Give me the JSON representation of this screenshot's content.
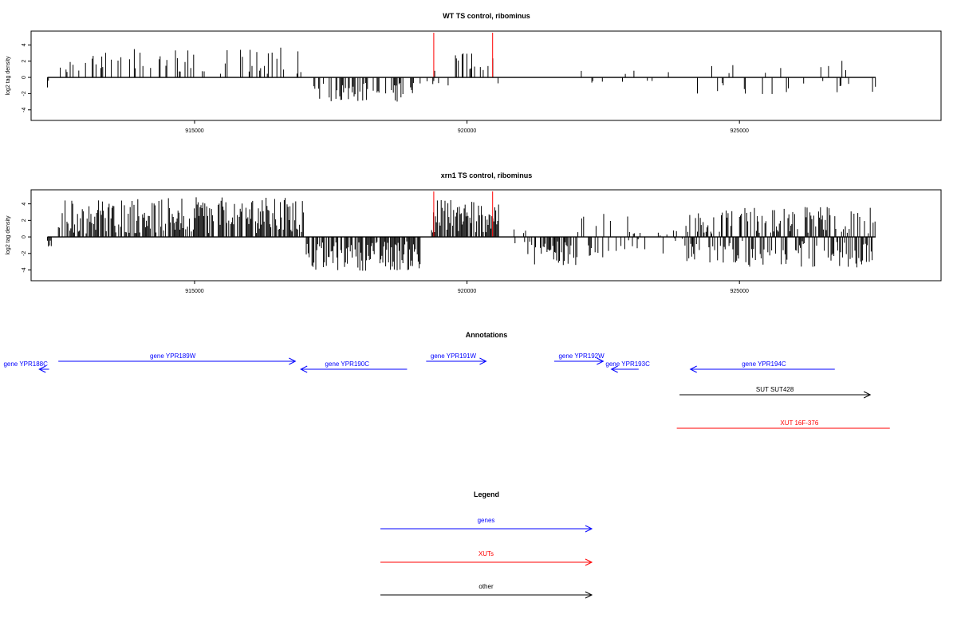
{
  "colors": {
    "gene": "#0000ff",
    "xut": "#ff0000",
    "other": "#000000",
    "bar": "#000000",
    "highlight": "#ff0000"
  },
  "chart_data": [
    {
      "type": "bar",
      "title": "WT TS control, ribominus",
      "ylabel": "log2 tag density",
      "ylim": [
        -5.3,
        5.7
      ],
      "yticks": [
        "-4",
        "-2",
        "0",
        "2",
        "4"
      ],
      "yticks_values": [
        -4,
        -2,
        0,
        2,
        4
      ],
      "xlim": [
        912000,
        928700
      ],
      "xticks": [
        "915000",
        "920000",
        "925000"
      ],
      "xticks_values": [
        915000,
        920000,
        925000
      ],
      "track_start": 912300,
      "track_end": 927500,
      "highlights": [
        {
          "x": 919390,
          "y": 5.5
        },
        {
          "x": 920470,
          "y": 5.5
        }
      ],
      "segments": [
        {
          "from": 912300,
          "to": 912330,
          "mean": -1.0,
          "amp": 0.6,
          "density": 1.0
        },
        {
          "from": 912500,
          "to": 912700,
          "mean": 0.9,
          "amp": 0.4,
          "density": 0.3
        },
        {
          "from": 912700,
          "to": 917000,
          "mean": 2.0,
          "amp": 1.7,
          "density": 0.28
        },
        {
          "from": 917050,
          "to": 919150,
          "mean": -1.8,
          "amp": 1.2,
          "density": 0.4
        },
        {
          "from": 919250,
          "to": 919700,
          "mean": 0.5,
          "amp": 0.7,
          "density": 0.15
        },
        {
          "from": 919700,
          "to": 920500,
          "mean": 1.9,
          "amp": 1.3,
          "density": 0.35
        },
        {
          "from": 920500,
          "to": 924000,
          "mean": -0.5,
          "amp": 0.5,
          "density": 0.04
        },
        {
          "from": 924000,
          "to": 927500,
          "mean": -0.4,
          "amp": 1.7,
          "density": 0.12
        }
      ]
    },
    {
      "type": "bar",
      "title": "xrn1 TS control, ribominus",
      "ylabel": "log2 tag density",
      "ylim": [
        -5.3,
        5.7
      ],
      "yticks": [
        "-4",
        "-2",
        "0",
        "2",
        "4"
      ],
      "yticks_values": [
        -4,
        -2,
        0,
        2,
        4
      ],
      "xlim": [
        912000,
        928700
      ],
      "xticks": [
        "915000",
        "920000",
        "925000"
      ],
      "xticks_values": [
        915000,
        920000,
        925000
      ],
      "track_start": 912300,
      "track_end": 927500,
      "highlights": [
        {
          "x": 919390,
          "y": 5.5
        },
        {
          "x": 920470,
          "y": 5.5
        }
      ],
      "segments": [
        {
          "from": 912300,
          "to": 912380,
          "mean": -1.0,
          "amp": 0.6,
          "density": 1.0
        },
        {
          "from": 912500,
          "to": 917000,
          "mean": 2.6,
          "amp": 2.2,
          "density": 0.75
        },
        {
          "from": 917050,
          "to": 919150,
          "mean": -2.3,
          "amp": 1.8,
          "density": 0.75
        },
        {
          "from": 919350,
          "to": 920600,
          "mean": 2.6,
          "amp": 2.1,
          "density": 0.85
        },
        {
          "from": 920600,
          "to": 921100,
          "mean": 0.0,
          "amp": 0.8,
          "density": 0.1
        },
        {
          "from": 921100,
          "to": 922000,
          "mean": -2.0,
          "amp": 1.8,
          "density": 0.6
        },
        {
          "from": 922000,
          "to": 923000,
          "mean": 0.4,
          "amp": 2.4,
          "density": 0.45
        },
        {
          "from": 923000,
          "to": 924000,
          "mean": -0.6,
          "amp": 1.5,
          "density": 0.3
        },
        {
          "from": 924000,
          "to": 925100,
          "mean": 0.0,
          "amp": 2.8,
          "density": 0.85
        },
        {
          "from": 925100,
          "to": 927500,
          "mean": 0.0,
          "amp": 3.3,
          "density": 0.95
        }
      ]
    }
  ],
  "annotations": {
    "title": "Annotations",
    "items": [
      {
        "label": "gene YPR188C",
        "kind": "gene",
        "strand": "-",
        "start": 912150,
        "end": 912330,
        "row": 1,
        "label_pos": 911900
      },
      {
        "label": "gene YPR189W",
        "kind": "gene",
        "strand": "+",
        "start": 912500,
        "end": 916850,
        "row": 0,
        "label_pos": 914600
      },
      {
        "label": "gene YPR190C",
        "kind": "gene",
        "strand": "-",
        "start": 916950,
        "end": 918900,
        "row": 1,
        "label_pos": 917800
      },
      {
        "label": "gene YPR191W",
        "kind": "gene",
        "strand": "+",
        "start": 919250,
        "end": 920350,
        "row": 0,
        "label_pos": 919750
      },
      {
        "label": "gene YPR192W",
        "kind": "gene",
        "strand": "+",
        "start": 921600,
        "end": 922500,
        "row": 0,
        "label_pos": 922100
      },
      {
        "label": "gene YPR193C",
        "kind": "gene",
        "strand": "-",
        "start": 922650,
        "end": 923150,
        "row": 1,
        "label_pos": 922950
      },
      {
        "label": "gene YPR194C",
        "kind": "gene",
        "strand": "-",
        "start": 924100,
        "end": 926750,
        "row": 1,
        "label_pos": 925450
      },
      {
        "label": "SUT SUT428",
        "kind": "other",
        "strand": "+",
        "start": 923900,
        "end": 927400,
        "row": 2,
        "label_pos": 925650
      },
      {
        "label": "XUT 16F-376",
        "kind": "xut",
        "strand": "none",
        "start": 923850,
        "end": 927760,
        "row": 3,
        "label_pos": 926100
      }
    ]
  },
  "legend": {
    "title": "Legend",
    "items": [
      {
        "label": "genes",
        "kind": "gene"
      },
      {
        "label": "XUTs",
        "kind": "xut"
      },
      {
        "label": "other",
        "kind": "other"
      }
    ]
  }
}
